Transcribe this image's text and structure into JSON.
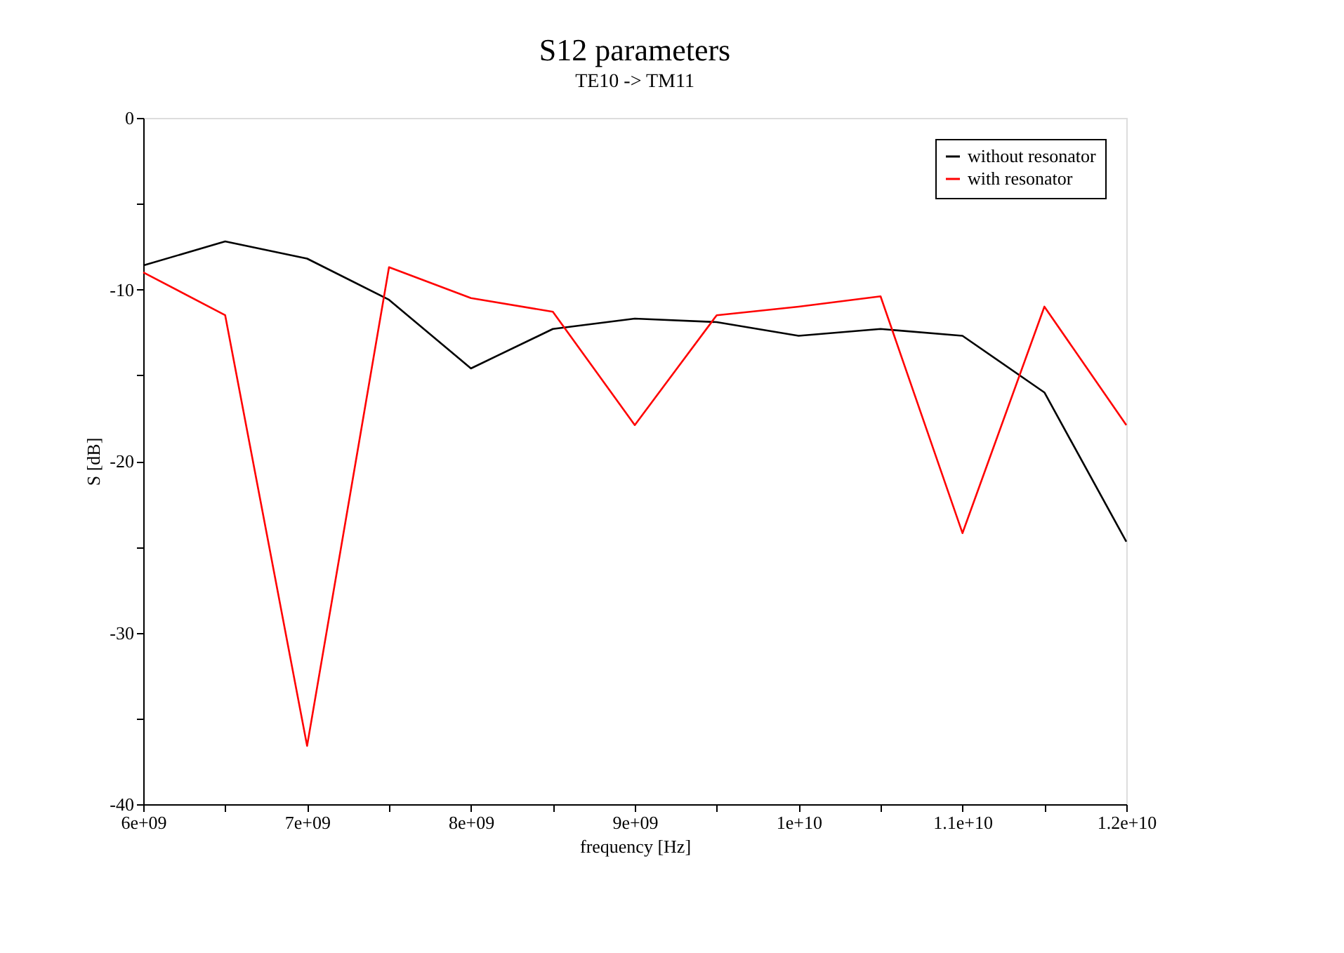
{
  "chart_data": {
    "type": "line",
    "title": "S12 parameters",
    "subtitle": "TE10 -> TM11",
    "xlabel": "frequency [Hz]",
    "ylabel": "S [dB]",
    "x": [
      6000000000.0,
      6500000000.0,
      7000000000.0,
      7500000000.0,
      8000000000.0,
      8500000000.0,
      9000000000.0,
      9500000000.0,
      10000000000.0,
      10500000000.0,
      11000000000.0,
      11500000000.0,
      12000000000.0
    ],
    "series": [
      {
        "name": "without resonator",
        "color": "#000000",
        "values": [
          -8.6,
          -7.2,
          -8.2,
          -10.6,
          -14.6,
          -12.3,
          -11.7,
          -11.9,
          -12.7,
          -12.3,
          -12.7,
          -16.0,
          -24.7
        ]
      },
      {
        "name": "with resonator",
        "color": "#ff0000",
        "values": [
          -9.0,
          -11.5,
          -36.6,
          -8.7,
          -10.5,
          -11.3,
          -17.9,
          -11.5,
          -11.0,
          -10.4,
          -24.2,
          -11.0,
          -17.9
        ]
      }
    ],
    "xlim": [
      6000000000.0,
      12000000000.0
    ],
    "xticks": [
      {
        "value": 6000000000.0,
        "label": "6e+09"
      },
      {
        "value": 6500000000.0,
        "label": null
      },
      {
        "value": 7000000000.0,
        "label": "7e+09"
      },
      {
        "value": 7500000000.0,
        "label": null
      },
      {
        "value": 8000000000.0,
        "label": "8e+09"
      },
      {
        "value": 8500000000.0,
        "label": null
      },
      {
        "value": 9000000000.0,
        "label": "9e+09"
      },
      {
        "value": 9500000000.0,
        "label": null
      },
      {
        "value": 10000000000.0,
        "label": "1e+10"
      },
      {
        "value": 10500000000.0,
        "label": null
      },
      {
        "value": 11000000000.0,
        "label": "1.1e+10"
      },
      {
        "value": 11500000000.0,
        "label": null
      },
      {
        "value": 12000000000.0,
        "label": "1.2e+10"
      }
    ],
    "ylim": [
      -40,
      0
    ],
    "yticks": [
      -40,
      {
        "value": -35,
        "label": null
      },
      -30,
      {
        "value": -25,
        "label": null
      },
      -20,
      {
        "value": -15,
        "label": null
      },
      -10,
      {
        "value": -5,
        "label": null
      },
      0
    ],
    "grid": false,
    "legend": "top right",
    "marker": "none",
    "line_style": "solid"
  }
}
